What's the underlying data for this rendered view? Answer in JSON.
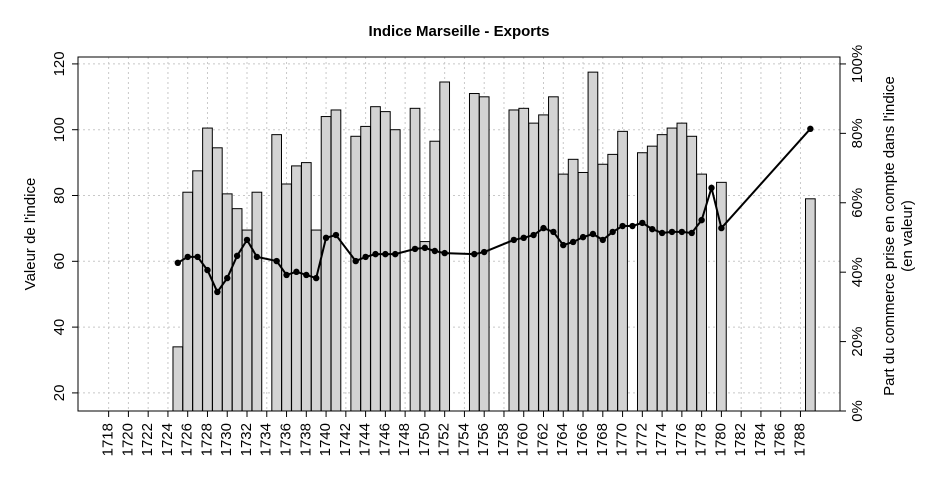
{
  "chart_data": {
    "type": "bar+line",
    "title": "Indice Marseille - Exports",
    "ylabel": "Valeur de l'indice",
    "y2label": [
      "Part du commerce prise en compte dans l'indice",
      "(en valeur)"
    ],
    "xlim": [
      1714.9,
      1792.0
    ],
    "xticks": [
      1718,
      1720,
      1722,
      1724,
      1726,
      1728,
      1730,
      1732,
      1734,
      1736,
      1738,
      1740,
      1742,
      1744,
      1746,
      1748,
      1750,
      1752,
      1754,
      1756,
      1758,
      1760,
      1762,
      1764,
      1766,
      1768,
      1770,
      1772,
      1774,
      1776,
      1778,
      1780,
      1782,
      1784,
      1786,
      1788
    ],
    "ylim": [
      14.5,
      122.1
    ],
    "yticks": [
      20,
      40,
      60,
      80,
      100,
      120
    ],
    "y2lim": [
      0,
      102
    ],
    "y2ticks": [
      {
        "value": 0,
        "label": "0%"
      },
      {
        "value": 20,
        "label": "20%"
      },
      {
        "value": 40,
        "label": "40%"
      },
      {
        "value": 60,
        "label": "60%"
      },
      {
        "value": 80,
        "label": "80%"
      },
      {
        "value": 100,
        "label": "100%"
      }
    ],
    "grid": true,
    "series": [
      {
        "type": "bar",
        "axis": "y",
        "color": "#d3d3d3",
        "x": [
          1725,
          1726,
          1727,
          1728,
          1729,
          1730,
          1731,
          1732,
          1733,
          1735,
          1736,
          1737,
          1738,
          1739,
          1740,
          1741,
          1743,
          1744,
          1745,
          1746,
          1747,
          1749,
          1750,
          1751,
          1752,
          1755,
          1756,
          1759,
          1760,
          1761,
          1762,
          1763,
          1764,
          1765,
          1766,
          1767,
          1768,
          1769,
          1770,
          1772,
          1773,
          1774,
          1775,
          1776,
          1777,
          1778,
          1780,
          1789
        ],
        "values": [
          34,
          81,
          87.5,
          100.5,
          94.5,
          80.5,
          76,
          69.5,
          81,
          98.5,
          83.5,
          89,
          90,
          69.5,
          104,
          106,
          98,
          101,
          107,
          105.5,
          100,
          106.5,
          66,
          96.5,
          114.5,
          111,
          110,
          106,
          106.5,
          102,
          104.5,
          110,
          86.5,
          91,
          87,
          117.5,
          89.5,
          92.5,
          99.5,
          93,
          95,
          98.5,
          100.5,
          102,
          98,
          86.5,
          84,
          79
        ]
      },
      {
        "type": "line",
        "axis": "y2",
        "color": "#000000",
        "x": [
          1725,
          1726,
          1727,
          1728,
          1729,
          1730,
          1731,
          1732,
          1733,
          1735,
          1736,
          1737,
          1738,
          1739,
          1740,
          1741,
          1743,
          1744,
          1745,
          1746,
          1747,
          1749,
          1750,
          1751,
          1752,
          1755,
          1756,
          1759,
          1760,
          1761,
          1762,
          1763,
          1764,
          1765,
          1766,
          1767,
          1768,
          1769,
          1770,
          1771,
          1772,
          1773,
          1774,
          1775,
          1776,
          1777,
          1778,
          1779,
          1780,
          1789
        ],
        "values": [
          42.7,
          44.4,
          44.4,
          40.6,
          34.3,
          38.3,
          44.7,
          49.3,
          44.4,
          43.2,
          39.2,
          40.1,
          39.2,
          38.3,
          49.9,
          50.7,
          43.2,
          44.4,
          45.2,
          45.2,
          45.2,
          46.7,
          47.0,
          46.1,
          45.5,
          45.2,
          45.8,
          49.3,
          49.9,
          50.7,
          52.7,
          51.6,
          47.8,
          48.7,
          50.1,
          51.0,
          49.3,
          51.6,
          53.3,
          53.3,
          54.2,
          52.4,
          51.3,
          51.6,
          51.6,
          51.3,
          55.0,
          64.3,
          52.7,
          81.3
        ]
      }
    ]
  }
}
